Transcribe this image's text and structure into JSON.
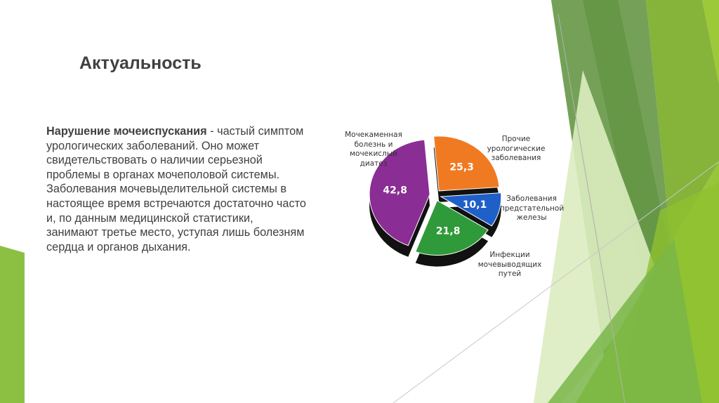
{
  "slide": {
    "title": "Актуальность",
    "body_bold": "Нарушение мочеиспускания",
    "body_text": " - частый симптом урологических заболеваний. Оно может свидетельствовать о наличии серьезной проблемы в органах мочеполовой системы. Заболевания мочевыделительной системы в настоящее время встречаются достаточно часто и, по данным медицинской статистики, занимают третье место, уступая лишь болезням сердца и органов дыхания."
  },
  "theme_colors": {
    "dark_green": "#5f9340",
    "mid_green": "#7ab648",
    "light_green": "#9cc93a",
    "pale_green": "#d6e8b0"
  },
  "chart_data": {
    "type": "pie",
    "style": "3d-exploded",
    "slices": [
      {
        "label": "Прочие урологические заболевания",
        "value": 25.3,
        "display": "25,3",
        "color": "#f07a22"
      },
      {
        "label": "Заболевания предстательной железы",
        "value": 10.1,
        "display": "10,1",
        "color": "#1f5fc8"
      },
      {
        "label": "Инфекции мочевыводящих путей",
        "value": 21.8,
        "display": "21,8",
        "color": "#2f9a3a"
      },
      {
        "label": "Мочекаменная болезнь и мочекислый диатез",
        "value": 42.8,
        "display": "42,8",
        "color": "#8a2d94"
      }
    ]
  }
}
